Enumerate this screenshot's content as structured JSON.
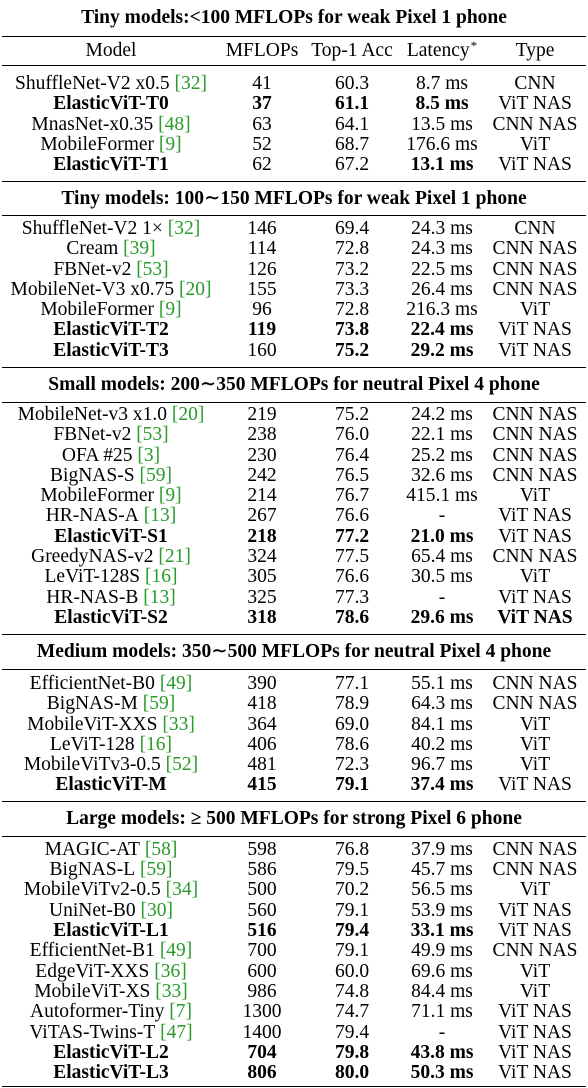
{
  "colors": {
    "text": "#000000",
    "citation": "#2a9a2a"
  },
  "table": {
    "columns": {
      "model": "Model",
      "mflops": "MFLOPs",
      "top1": "Top-1 Acc",
      "latency": "Latency",
      "latency_mark": "*",
      "type": "Type"
    },
    "sections": [
      {
        "title": "Tiny models:<100 MFLOPs for weak Pixel 1 phone",
        "rows": [
          {
            "model": "ShuffleNet-V2 x0.5",
            "cite": "[32]",
            "mflops": "41",
            "top1": "60.3",
            "latency": "8.7 ms",
            "type": "CNN"
          },
          {
            "model": "ElasticViT-T0",
            "mflops": "37",
            "top1": "61.1",
            "latency": "8.5 ms",
            "type": "ViT NAS",
            "bold": {
              "model": true,
              "mflops": true,
              "top1": true,
              "latency": true
            }
          },
          {
            "model": "MnasNet-x0.35",
            "cite": "[48]",
            "mflops": "63",
            "top1": "64.1",
            "latency": "13.5 ms",
            "type": "CNN NAS"
          },
          {
            "model": "MobileFormer",
            "cite": "[9]",
            "mflops": "52",
            "top1": "68.7",
            "latency": "176.6 ms",
            "type": "ViT"
          },
          {
            "model": "ElasticViT-T1",
            "mflops": "62",
            "top1": "67.2",
            "latency": "13.1 ms",
            "type": "ViT NAS",
            "bold": {
              "model": true,
              "latency": true
            }
          }
        ]
      },
      {
        "title": "Tiny models: 100∼150 MFLOPs for weak Pixel 1 phone",
        "rows": [
          {
            "model": "ShuffleNet-V2 1×",
            "cite": "[32]",
            "mflops": "146",
            "top1": "69.4",
            "latency": "24.3 ms",
            "type": "CNN"
          },
          {
            "model": "Cream",
            "cite": "[39]",
            "mflops": "114",
            "top1": "72.8",
            "latency": "24.3 ms",
            "type": "CNN NAS"
          },
          {
            "model": "FBNet-v2",
            "cite": "[53]",
            "mflops": "126",
            "top1": "73.2",
            "latency": "22.5 ms",
            "type": "CNN NAS"
          },
          {
            "model": "MobileNet-V3 x0.75",
            "cite": "[20]",
            "mflops": "155",
            "top1": "73.3",
            "latency": "26.4 ms",
            "type": "CNN NAS"
          },
          {
            "model": "MobileFormer",
            "cite": "[9]",
            "mflops": "96",
            "top1": "72.8",
            "latency": "216.3 ms",
            "type": "ViT"
          },
          {
            "model": "ElasticViT-T2",
            "mflops": "119",
            "top1": "73.8",
            "latency": "22.4 ms",
            "type": "ViT NAS",
            "bold": {
              "model": true,
              "mflops": true,
              "top1": true,
              "latency": true
            }
          },
          {
            "model": "ElasticViT-T3",
            "mflops": "160",
            "top1": "75.2",
            "latency": "29.2 ms",
            "type": "ViT NAS",
            "bold": {
              "model": true,
              "top1": true,
              "latency": true
            }
          }
        ]
      },
      {
        "title": "Small models: 200∼350 MFLOPs for neutral Pixel 4 phone",
        "rows": [
          {
            "model": "MobileNet-v3 x1.0",
            "cite": "[20]",
            "mflops": "219",
            "top1": "75.2",
            "latency": "24.2 ms",
            "type": "CNN NAS"
          },
          {
            "model": "FBNet-v2",
            "cite": "[53]",
            "mflops": "238",
            "top1": "76.0",
            "latency": "22.1 ms",
            "type": "CNN NAS"
          },
          {
            "model": "OFA #25",
            "cite": "[3]",
            "mflops": "230",
            "top1": "76.4",
            "latency": "25.2 ms",
            "type": "CNN NAS"
          },
          {
            "model": "BigNAS-S",
            "cite": "[59]",
            "mflops": "242",
            "top1": "76.5",
            "latency": "32.6 ms",
            "type": "CNN NAS"
          },
          {
            "model": "MobileFormer",
            "cite": "[9]",
            "mflops": "214",
            "top1": "76.7",
            "latency": "415.1 ms",
            "type": "ViT"
          },
          {
            "model": "HR-NAS-A",
            "cite": "[13]",
            "mflops": "267",
            "top1": "76.6",
            "latency": "-",
            "type": "ViT NAS"
          },
          {
            "model": "ElasticViT-S1",
            "mflops": "218",
            "top1": "77.2",
            "latency": "21.0 ms",
            "type": "ViT NAS",
            "bold": {
              "model": true,
              "mflops": true,
              "top1": true,
              "latency": true
            }
          },
          {
            "model": "GreedyNAS-v2",
            "cite": "[21]",
            "mflops": "324",
            "top1": "77.5",
            "latency": "65.4 ms",
            "type": "CNN NAS"
          },
          {
            "model": "LeViT-128S",
            "cite": "[16]",
            "mflops": "305",
            "top1": "76.6",
            "latency": "30.5 ms",
            "type": "ViT"
          },
          {
            "model": "HR-NAS-B",
            "cite": "[13]",
            "mflops": "325",
            "top1": "77.3",
            "latency": "-",
            "type": "ViT NAS"
          },
          {
            "model": "ElasticViT-S2",
            "mflops": "318",
            "top1": "78.6",
            "latency": "29.6 ms",
            "type": "ViT NAS",
            "bold": {
              "model": true,
              "mflops": true,
              "top1": true,
              "latency": true,
              "type": true
            }
          }
        ]
      },
      {
        "title": "Medium models: 350∼500 MFLOPs for neutral Pixel 4 phone",
        "rows": [
          {
            "model": "EfficientNet-B0",
            "cite": "[49]",
            "mflops": "390",
            "top1": "77.1",
            "latency": "55.1 ms",
            "type": "CNN NAS"
          },
          {
            "model": "BigNAS-M",
            "cite": "[59]",
            "mflops": "418",
            "top1": "78.9",
            "latency": "64.3 ms",
            "type": "CNN NAS"
          },
          {
            "model": "MobileViT-XXS",
            "cite": "[33]",
            "mflops": "364",
            "top1": "69.0",
            "latency": "84.1 ms",
            "type": "ViT"
          },
          {
            "model": "LeViT-128",
            "cite": "[16]",
            "mflops": "406",
            "top1": "78.6",
            "latency": "40.2 ms",
            "type": "ViT"
          },
          {
            "model": "MobileViTv3-0.5",
            "cite": "[52]",
            "mflops": "481",
            "top1": "72.3",
            "latency": "96.7 ms",
            "type": "ViT"
          },
          {
            "model": "ElasticViT-M",
            "mflops": "415",
            "top1": "79.1",
            "latency": "37.4 ms",
            "type": "ViT NAS",
            "bold": {
              "model": true,
              "mflops": true,
              "top1": true,
              "latency": true
            }
          }
        ]
      },
      {
        "title": "Large models: ≥ 500 MFLOPs for strong Pixel 6 phone",
        "rows": [
          {
            "model": "MAGIC-AT",
            "cite": "[58]",
            "mflops": "598",
            "top1": "76.8",
            "latency": "37.9 ms",
            "type": "CNN NAS"
          },
          {
            "model": "BigNAS-L",
            "cite": "[59]",
            "mflops": "586",
            "top1": "79.5",
            "latency": "45.7 ms",
            "type": "CNN NAS"
          },
          {
            "model": "MobileViTv2-0.5",
            "cite": "[34]",
            "mflops": "500",
            "top1": "70.2",
            "latency": "56.5 ms",
            "type": "ViT"
          },
          {
            "model": "UniNet-B0",
            "cite": "[30]",
            "mflops": "560",
            "top1": "79.1",
            "latency": "53.9 ms",
            "type": "ViT NAS"
          },
          {
            "model": "ElasticViT-L1",
            "mflops": "516",
            "top1": "79.4",
            "latency": "33.1 ms",
            "type": "ViT NAS",
            "bold": {
              "model": true,
              "mflops": true,
              "top1": true,
              "latency": true
            }
          },
          {
            "model": "EfficientNet-B1",
            "cite": "[49]",
            "mflops": "700",
            "top1": "79.1",
            "latency": "49.9 ms",
            "type": "CNN NAS"
          },
          {
            "model": "EdgeViT-XXS",
            "cite": "[36]",
            "mflops": "600",
            "top1": "60.0",
            "latency": "69.6 ms",
            "type": "ViT"
          },
          {
            "model": "MobileViT-XS",
            "cite": "[33]",
            "mflops": "986",
            "top1": "74.8",
            "latency": "84.4 ms",
            "type": "ViT"
          },
          {
            "model": "Autoformer-Tiny",
            "cite": "[7]",
            "mflops": "1300",
            "top1": "74.7",
            "latency": "71.1 ms",
            "type": "ViT NAS"
          },
          {
            "model": "ViTAS-Twins-T",
            "cite": "[47]",
            "mflops": "1400",
            "top1": "79.4",
            "latency": "-",
            "type": "ViT NAS"
          },
          {
            "model": "ElasticViT-L2",
            "mflops": "704",
            "top1": "79.8",
            "latency": "43.8 ms",
            "type": "ViT NAS",
            "bold": {
              "model": true,
              "mflops": true,
              "top1": true,
              "latency": true
            }
          },
          {
            "model": "ElasticViT-L3",
            "mflops": "806",
            "top1": "80.0",
            "latency": "50.3 ms",
            "type": "ViT NAS",
            "bold": {
              "model": true,
              "mflops": true,
              "top1": true,
              "latency": true
            }
          }
        ]
      }
    ]
  }
}
